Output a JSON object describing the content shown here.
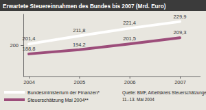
{
  "chart_data": {
    "type": "line",
    "title": "Erwartete Steuereinnahmen des Bundes bis 2007 (Mrd. Euro)",
    "categories": [
      "2004",
      "2005",
      "2006",
      "2007"
    ],
    "series": [
      {
        "name": "Bundesministerium der Finanzen*",
        "color": "#ffffff",
        "values": [
          201.4,
          211.8,
          221.4,
          229.9
        ],
        "value_labels": [
          "201,4",
          "211,8",
          "221,4",
          "229,9"
        ]
      },
      {
        "name": "Steuerschätzung Mai 2004**",
        "color": "#9c4d7a",
        "values": [
          188.8,
          194.2,
          201.5,
          209.3
        ],
        "value_labels": [
          "188,8",
          "194,2",
          "201,5",
          "209,3"
        ]
      }
    ],
    "ylim": [
      160,
      240
    ],
    "yticks": [
      200
    ],
    "grid": false,
    "legend": "bottom-left",
    "data_labels": true,
    "annotations": [
      "Quelle: BMF, Arbeitskreis Steuerschätzungen",
      "11.-13. Mai 2004"
    ]
  }
}
